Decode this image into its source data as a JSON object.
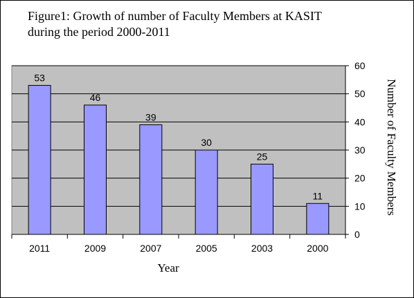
{
  "chart_data": {
    "type": "bar",
    "title": "Figure1: Growth of number of Faculty Members at KASIT during the period 2000-2011",
    "title_lines": [
      "Figure1: Growth of number of Faculty Members at KASIT",
      "during the period 2000-2011"
    ],
    "categories": [
      "2011",
      "2009",
      "2007",
      "2005",
      "2003",
      "2000"
    ],
    "values": [
      53,
      46,
      39,
      30,
      25,
      11
    ],
    "data_labels": [
      "53",
      "46",
      "39",
      "30",
      "25",
      "11"
    ],
    "xlabel": "Year",
    "ylabel": "Number of Faculty Members",
    "ylim": [
      0,
      60
    ],
    "yticks": [
      "0",
      "10",
      "20",
      "30",
      "40",
      "50",
      "60"
    ],
    "yaxis_side": "right",
    "grid": true,
    "legend": "none",
    "colors": {
      "bar_fill": "#9999ff",
      "bar_stroke": "#000000",
      "plot_background": "#c0c0c0",
      "gridline": "#000000"
    }
  }
}
